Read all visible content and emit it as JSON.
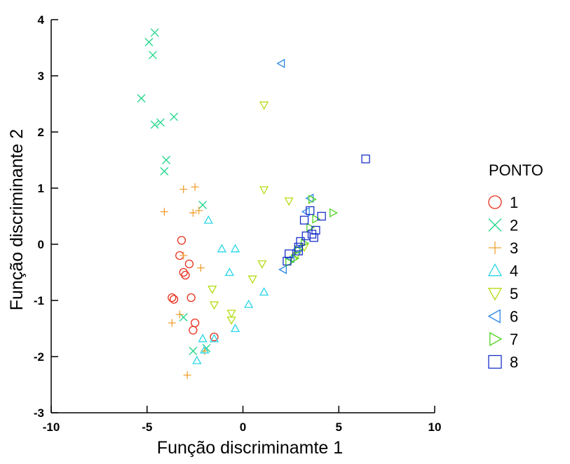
{
  "chart_data": {
    "type": "scatter",
    "title": "",
    "xlabel": "Função discriminamte 1",
    "ylabel": "Função discriminante 2",
    "xlim": [
      -10,
      10
    ],
    "ylim": [
      -3,
      4
    ],
    "xticks": [
      "-10",
      "-5",
      "0",
      "5",
      "10"
    ],
    "yticks": [
      "-3",
      "-2",
      "-1",
      "0",
      "1",
      "2",
      "3",
      "4"
    ],
    "grid": false,
    "legend_title": "PONTO",
    "legend_position": "right",
    "series": [
      {
        "name": "1",
        "marker": "circle",
        "color": "#e8301c",
        "points": [
          [
            -3.2,
            0.07
          ],
          [
            -3.3,
            -0.2
          ],
          [
            -3.1,
            -0.5
          ],
          [
            -3.0,
            -0.55
          ],
          [
            -2.8,
            -0.35
          ],
          [
            -3.7,
            -0.95
          ],
          [
            -3.6,
            -0.98
          ],
          [
            -2.7,
            -0.95
          ],
          [
            -2.5,
            -1.4
          ],
          [
            -2.6,
            -1.53
          ],
          [
            -1.5,
            -1.65
          ]
        ]
      },
      {
        "name": "2",
        "marker": "x",
        "color": "#1fd68a",
        "points": [
          [
            -4.6,
            3.77
          ],
          [
            -4.9,
            3.6
          ],
          [
            -4.7,
            3.37
          ],
          [
            -5.3,
            2.6
          ],
          [
            -3.6,
            2.27
          ],
          [
            -4.3,
            2.17
          ],
          [
            -4.6,
            2.13
          ],
          [
            -4.0,
            1.5
          ],
          [
            -4.1,
            1.3
          ],
          [
            -2.1,
            0.7
          ],
          [
            -3.1,
            -1.3
          ],
          [
            -2.6,
            -1.9
          ],
          [
            -1.9,
            -1.85
          ]
        ]
      },
      {
        "name": "3",
        "marker": "plus",
        "color": "#f0a030",
        "points": [
          [
            -3.1,
            0.98
          ],
          [
            -2.5,
            1.02
          ],
          [
            -4.1,
            0.58
          ],
          [
            -2.6,
            0.56
          ],
          [
            -2.3,
            0.6
          ],
          [
            -3.1,
            -0.2
          ],
          [
            -2.2,
            -0.42
          ],
          [
            -3.3,
            -1.25
          ],
          [
            -3.7,
            -1.4
          ],
          [
            -2.0,
            -1.9
          ],
          [
            -2.9,
            -2.33
          ]
        ]
      },
      {
        "name": "4",
        "marker": "triangle-up",
        "color": "#2ad6e8",
        "points": [
          [
            -1.8,
            0.43
          ],
          [
            -1.1,
            -0.08
          ],
          [
            -0.4,
            -0.08
          ],
          [
            -0.7,
            -0.5
          ],
          [
            1.1,
            -0.85
          ],
          [
            0.3,
            -1.07
          ],
          [
            -0.4,
            -1.5
          ],
          [
            -2.1,
            -1.68
          ],
          [
            -1.5,
            -1.68
          ],
          [
            -2.4,
            -2.07
          ],
          [
            -2.0,
            -1.88
          ]
        ]
      },
      {
        "name": "5",
        "marker": "triangle-down",
        "color": "#b4dc14",
        "points": [
          [
            1.1,
            2.48
          ],
          [
            1.1,
            0.97
          ],
          [
            2.4,
            0.77
          ],
          [
            1.0,
            -0.35
          ],
          [
            0.5,
            -0.62
          ],
          [
            -1.6,
            -0.8
          ],
          [
            -1.5,
            -1.08
          ],
          [
            -0.6,
            -1.23
          ],
          [
            -0.6,
            -1.35
          ],
          [
            3.2,
            -0.05
          ],
          [
            2.8,
            -0.2
          ]
        ]
      },
      {
        "name": "6",
        "marker": "triangle-left",
        "color": "#2a86e8",
        "points": [
          [
            2.0,
            3.22
          ],
          [
            3.5,
            0.82
          ],
          [
            3.3,
            0.58
          ],
          [
            2.8,
            -0.1
          ],
          [
            2.5,
            -0.25
          ],
          [
            2.1,
            -0.45
          ]
        ]
      },
      {
        "name": "7",
        "marker": "triangle-right",
        "color": "#50d420",
        "points": [
          [
            3.6,
            0.8
          ],
          [
            4.7,
            0.56
          ],
          [
            3.8,
            0.45
          ],
          [
            3.5,
            0.3
          ],
          [
            3.2,
            0.02
          ],
          [
            2.9,
            -0.1
          ],
          [
            2.7,
            -0.25
          ],
          [
            2.4,
            -0.32
          ]
        ]
      },
      {
        "name": "8",
        "marker": "square",
        "color": "#1a30c8",
        "points": [
          [
            6.4,
            1.52
          ],
          [
            3.5,
            0.6
          ],
          [
            4.1,
            0.5
          ],
          [
            3.2,
            0.43
          ],
          [
            3.8,
            0.25
          ],
          [
            3.6,
            0.18
          ],
          [
            3.3,
            0.15
          ],
          [
            3.7,
            0.12
          ],
          [
            3.0,
            0.05
          ],
          [
            2.9,
            -0.05
          ],
          [
            2.9,
            -0.12
          ],
          [
            2.4,
            -0.17
          ],
          [
            2.3,
            -0.3
          ]
        ]
      }
    ]
  }
}
